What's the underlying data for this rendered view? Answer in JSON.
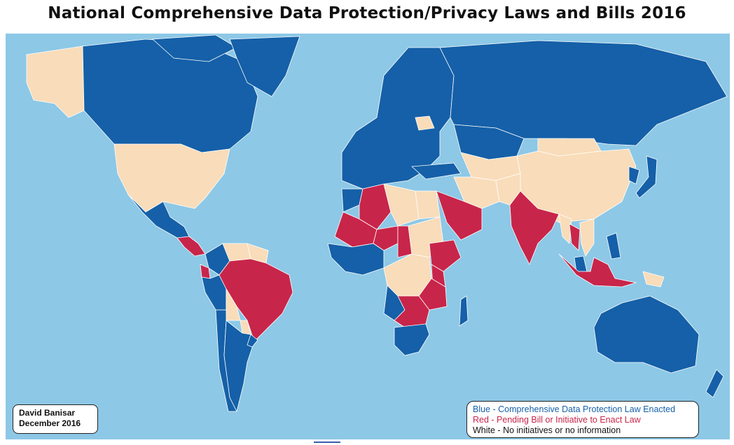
{
  "title": "National Comprehensive Data Protection/Privacy Laws and Bills 2016",
  "colors": {
    "ocean": "#8dc8e6",
    "law_enacted": "#1560a8",
    "pending_bill": "#c8254a",
    "no_information": "#f9dcb9",
    "border": "#ffffff"
  },
  "credit": {
    "author": "David Banisar",
    "date": "December 2016"
  },
  "legend": {
    "blue_prefix": "Blue - ",
    "blue_text": "Comprehensive Data Protection Law Enacted",
    "red_prefix": "Red - ",
    "red_text": " Pending Bill or Initiative to Enact Law",
    "white_prefix": "White - ",
    "white_text": "No initiatives or no information"
  },
  "map": {
    "regions": [
      {
        "name": "Alaska",
        "status": "none"
      },
      {
        "name": "Canada",
        "status": "enacted"
      },
      {
        "name": "Greenland",
        "status": "enacted"
      },
      {
        "name": "United States",
        "status": "none"
      },
      {
        "name": "Mexico",
        "status": "enacted"
      },
      {
        "name": "Central America",
        "status": "pending"
      },
      {
        "name": "Colombia",
        "status": "enacted"
      },
      {
        "name": "Venezuela",
        "status": "none"
      },
      {
        "name": "Guianas",
        "status": "none"
      },
      {
        "name": "Ecuador",
        "status": "pending"
      },
      {
        "name": "Peru",
        "status": "enacted"
      },
      {
        "name": "Brazil",
        "status": "pending"
      },
      {
        "name": "Bolivia",
        "status": "none"
      },
      {
        "name": "Chile",
        "status": "enacted"
      },
      {
        "name": "Argentina",
        "status": "enacted"
      },
      {
        "name": "Paraguay",
        "status": "none"
      },
      {
        "name": "Uruguay",
        "status": "enacted"
      },
      {
        "name": "Europe",
        "status": "enacted"
      },
      {
        "name": "Belarus",
        "status": "none"
      },
      {
        "name": "Russia",
        "status": "enacted"
      },
      {
        "name": "Kazakhstan",
        "status": "enacted"
      },
      {
        "name": "Central Asia",
        "status": "none"
      },
      {
        "name": "China",
        "status": "none"
      },
      {
        "name": "Mongolia",
        "status": "none"
      },
      {
        "name": "Japan",
        "status": "enacted"
      },
      {
        "name": "Korea",
        "status": "enacted"
      },
      {
        "name": "India",
        "status": "pending"
      },
      {
        "name": "Pakistan",
        "status": "none"
      },
      {
        "name": "Saudi Arabia",
        "status": "pending"
      },
      {
        "name": "Iran",
        "status": "none"
      },
      {
        "name": "Turkey",
        "status": "enacted"
      },
      {
        "name": "Algeria",
        "status": "pending"
      },
      {
        "name": "Morocco",
        "status": "enacted"
      },
      {
        "name": "Libya",
        "status": "none"
      },
      {
        "name": "Egypt",
        "status": "none"
      },
      {
        "name": "Mali",
        "status": "pending"
      },
      {
        "name": "West Africa",
        "status": "enacted"
      },
      {
        "name": "Niger",
        "status": "pending"
      },
      {
        "name": "Chad",
        "status": "pending"
      },
      {
        "name": "Sudan",
        "status": "none"
      },
      {
        "name": "Ethiopia",
        "status": "pending"
      },
      {
        "name": "Kenya",
        "status": "pending"
      },
      {
        "name": "Tanzania",
        "status": "pending"
      },
      {
        "name": "DR Congo",
        "status": "none"
      },
      {
        "name": "Angola",
        "status": "enacted"
      },
      {
        "name": "Zambia",
        "status": "pending"
      },
      {
        "name": "South Africa",
        "status": "enacted"
      },
      {
        "name": "Madagascar",
        "status": "enacted"
      },
      {
        "name": "Thailand",
        "status": "pending"
      },
      {
        "name": "Myanmar",
        "status": "none"
      },
      {
        "name": "Vietnam",
        "status": "none"
      },
      {
        "name": "Malaysia",
        "status": "enacted"
      },
      {
        "name": "Philippines",
        "status": "enacted"
      },
      {
        "name": "Indonesia",
        "status": "pending"
      },
      {
        "name": "Papua New Guinea",
        "status": "none"
      },
      {
        "name": "Australia",
        "status": "enacted"
      },
      {
        "name": "New Zealand",
        "status": "enacted"
      }
    ]
  }
}
